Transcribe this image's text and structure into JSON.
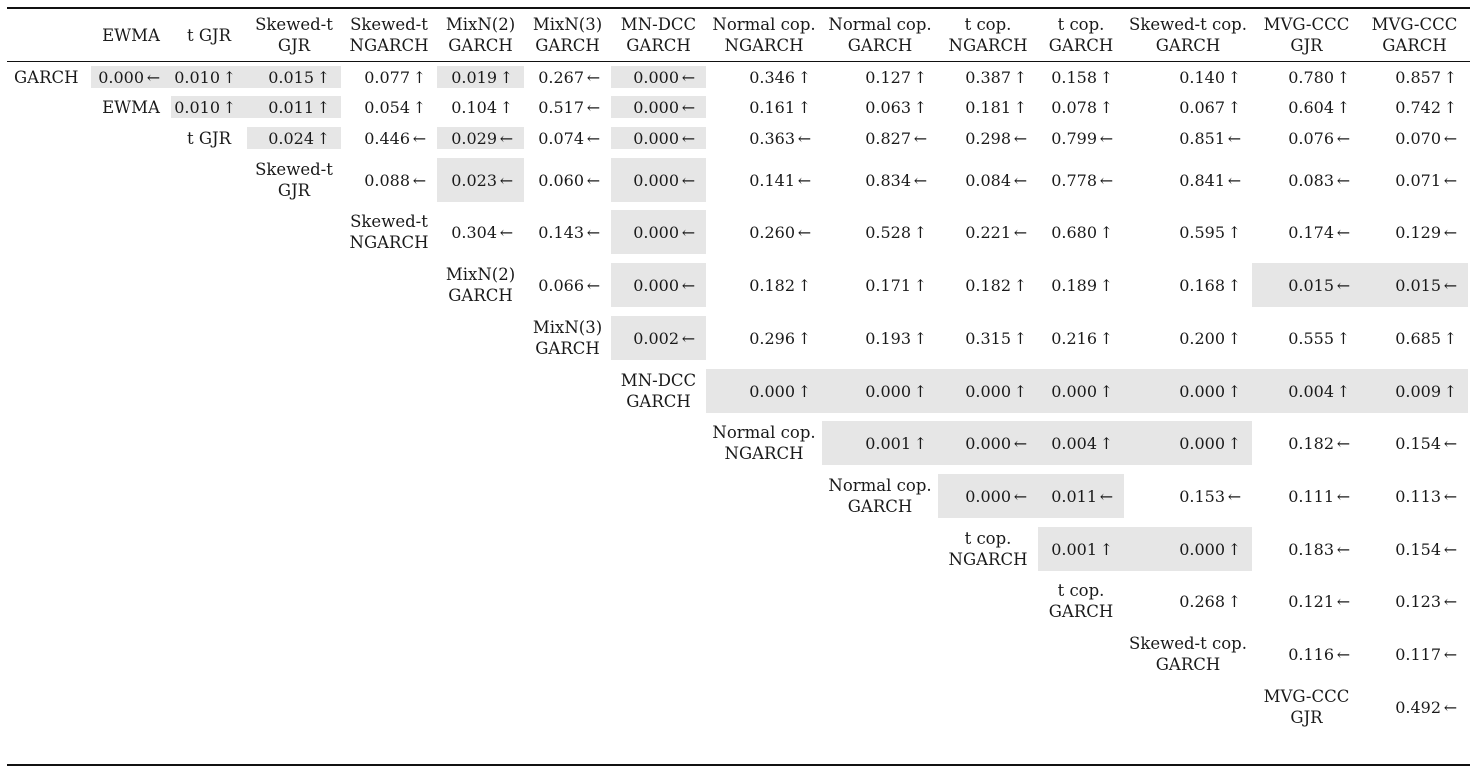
{
  "columns": [
    [
      "EWMA"
    ],
    [
      "t GJR"
    ],
    [
      "Skewed-t",
      "GJR"
    ],
    [
      "Skewed-t",
      "NGARCH"
    ],
    [
      "MixN(2)",
      "GARCH"
    ],
    [
      "MixN(3)",
      "GARCH"
    ],
    [
      "MN-DCC",
      "GARCH"
    ],
    [
      "Normal cop.",
      "NGARCH"
    ],
    [
      "Normal cop.",
      "GARCH"
    ],
    [
      "t cop.",
      "NGARCH"
    ],
    [
      "t cop.",
      "GARCH"
    ],
    [
      "Skewed-t cop.",
      "GARCH"
    ],
    [
      "MVG-CCC",
      "GJR"
    ],
    [
      "MVG-CCC",
      "GARCH"
    ]
  ],
  "rows": [
    {
      "label": [
        "GARCH"
      ],
      "cells": [
        [
          "0.000",
          "←",
          true
        ],
        [
          "0.010",
          "↑",
          true
        ],
        [
          "0.015",
          "↑",
          true
        ],
        [
          "0.077",
          "↑",
          false
        ],
        [
          "0.019",
          "↑",
          true
        ],
        [
          "0.267",
          "←",
          false
        ],
        [
          "0.000",
          "←",
          true
        ],
        [
          "0.346",
          "↑",
          false
        ],
        [
          "0.127",
          "↑",
          false
        ],
        [
          "0.387",
          "↑",
          false
        ],
        [
          "0.158",
          "↑",
          false
        ],
        [
          "0.140",
          "↑",
          false
        ],
        [
          "0.780",
          "↑",
          false
        ],
        [
          "0.857",
          "↑",
          false
        ]
      ]
    },
    {
      "label": [
        "EWMA"
      ],
      "cells": [
        [
          "0.010",
          "↑",
          true
        ],
        [
          "0.011",
          "↑",
          true
        ],
        [
          "0.054",
          "↑",
          false
        ],
        [
          "0.104",
          "↑",
          false
        ],
        [
          "0.517",
          "←",
          false
        ],
        [
          "0.000",
          "←",
          true
        ],
        [
          "0.161",
          "↑",
          false
        ],
        [
          "0.063",
          "↑",
          false
        ],
        [
          "0.181",
          "↑",
          false
        ],
        [
          "0.078",
          "↑",
          false
        ],
        [
          "0.067",
          "↑",
          false
        ],
        [
          "0.604",
          "↑",
          false
        ],
        [
          "0.742",
          "↑",
          false
        ]
      ]
    },
    {
      "label": [
        "t GJR"
      ],
      "cells": [
        [
          "0.024",
          "↑",
          true
        ],
        [
          "0.446",
          "←",
          false
        ],
        [
          "0.029",
          "←",
          true
        ],
        [
          "0.074",
          "←",
          false
        ],
        [
          "0.000",
          "←",
          true
        ],
        [
          "0.363",
          "←",
          false
        ],
        [
          "0.827",
          "←",
          false
        ],
        [
          "0.298",
          "←",
          false
        ],
        [
          "0.799",
          "←",
          false
        ],
        [
          "0.851",
          "←",
          false
        ],
        [
          "0.076",
          "←",
          false
        ],
        [
          "0.070",
          "←",
          false
        ]
      ]
    },
    {
      "label": [
        "Skewed-t",
        "GJR"
      ],
      "cells": [
        [
          "0.088",
          "←",
          false
        ],
        [
          "0.023",
          "←",
          true
        ],
        [
          "0.060",
          "←",
          false
        ],
        [
          "0.000",
          "←",
          true
        ],
        [
          "0.141",
          "←",
          false
        ],
        [
          "0.834",
          "←",
          false
        ],
        [
          "0.084",
          "←",
          false
        ],
        [
          "0.778",
          "←",
          false
        ],
        [
          "0.841",
          "←",
          false
        ],
        [
          "0.083",
          "←",
          false
        ],
        [
          "0.071",
          "←",
          false
        ]
      ]
    },
    {
      "label": [
        "Skewed-t",
        "NGARCH"
      ],
      "cells": [
        [
          "0.304",
          "←",
          false
        ],
        [
          "0.143",
          "←",
          false
        ],
        [
          "0.000",
          "←",
          true
        ],
        [
          "0.260",
          "←",
          false
        ],
        [
          "0.528",
          "↑",
          false
        ],
        [
          "0.221",
          "←",
          false
        ],
        [
          "0.680",
          "↑",
          false
        ],
        [
          "0.595",
          "↑",
          false
        ],
        [
          "0.174",
          "←",
          false
        ],
        [
          "0.129",
          "←",
          false
        ]
      ]
    },
    {
      "label": [
        "MixN(2)",
        "GARCH"
      ],
      "cells": [
        [
          "0.066",
          "←",
          false
        ],
        [
          "0.000",
          "←",
          true
        ],
        [
          "0.182",
          "↑",
          false
        ],
        [
          "0.171",
          "↑",
          false
        ],
        [
          "0.182",
          "↑",
          false
        ],
        [
          "0.189",
          "↑",
          false
        ],
        [
          "0.168",
          "↑",
          false
        ],
        [
          "0.015",
          "←",
          true
        ],
        [
          "0.015",
          "←",
          true
        ]
      ]
    },
    {
      "label": [
        "MixN(3)",
        "GARCH"
      ],
      "cells": [
        [
          "0.002",
          "←",
          true
        ],
        [
          "0.296",
          "↑",
          false
        ],
        [
          "0.193",
          "↑",
          false
        ],
        [
          "0.315",
          "↑",
          false
        ],
        [
          "0.216",
          "↑",
          false
        ],
        [
          "0.200",
          "↑",
          false
        ],
        [
          "0.555",
          "↑",
          false
        ],
        [
          "0.685",
          "↑",
          false
        ]
      ]
    },
    {
      "label": [
        "MN-DCC",
        "GARCH"
      ],
      "cells": [
        [
          "0.000",
          "↑",
          true
        ],
        [
          "0.000",
          "↑",
          true
        ],
        [
          "0.000",
          "↑",
          true
        ],
        [
          "0.000",
          "↑",
          true
        ],
        [
          "0.000",
          "↑",
          true
        ],
        [
          "0.004",
          "↑",
          true
        ],
        [
          "0.009",
          "↑",
          true
        ]
      ]
    },
    {
      "label": [
        "Normal cop.",
        "NGARCH"
      ],
      "cells": [
        [
          "0.001",
          "↑",
          true
        ],
        [
          "0.000",
          "←",
          true
        ],
        [
          "0.004",
          "↑",
          true
        ],
        [
          "0.000",
          "↑",
          true
        ],
        [
          "0.182",
          "←",
          false
        ],
        [
          "0.154",
          "←",
          false
        ]
      ]
    },
    {
      "label": [
        "Normal cop.",
        "GARCH"
      ],
      "cells": [
        [
          "0.000",
          "←",
          true
        ],
        [
          "0.011",
          "←",
          true
        ],
        [
          "0.153",
          "←",
          false
        ],
        [
          "0.111",
          "←",
          false
        ],
        [
          "0.113",
          "←",
          false
        ]
      ]
    },
    {
      "label": [
        "t cop.",
        "NGARCH"
      ],
      "cells": [
        [
          "0.001",
          "↑",
          true
        ],
        [
          "0.000",
          "↑",
          true
        ],
        [
          "0.183",
          "←",
          false
        ],
        [
          "0.154",
          "←",
          false
        ]
      ]
    },
    {
      "label": [
        "t cop.",
        "GARCH"
      ],
      "cells": [
        [
          "0.268",
          "↑",
          false
        ],
        [
          "0.121",
          "←",
          false
        ],
        [
          "0.123",
          "←",
          false
        ]
      ]
    },
    {
      "label": [
        "Skewed-t cop.",
        "GARCH"
      ],
      "cells": [
        [
          "0.116",
          "←",
          false
        ],
        [
          "0.117",
          "←",
          false
        ]
      ]
    },
    {
      "label": [
        "MVG-CCC",
        "GJR"
      ],
      "cells": [
        [
          "0.492",
          "←",
          false
        ]
      ]
    }
  ]
}
